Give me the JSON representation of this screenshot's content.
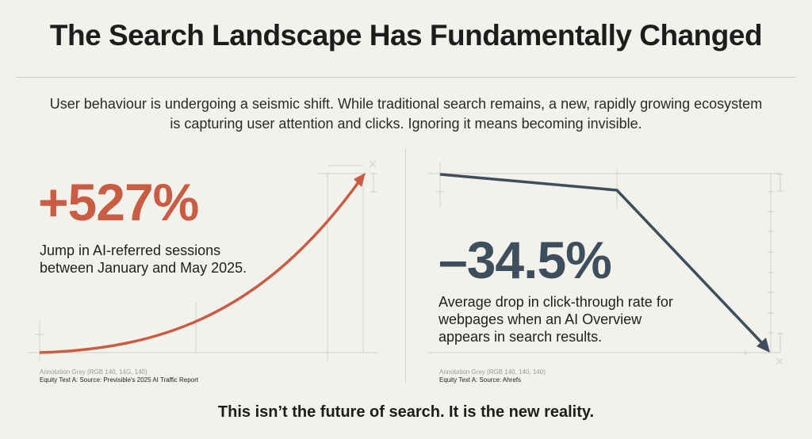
{
  "title": "The Search Landscape Has Fundamentally Changed",
  "intro": "User behaviour is undergoing a seismic shift. While traditional search remains, a new, rapidly growing ecosystem is capturing user attention and clicks. Ignoring it means becoming invisible.",
  "left_panel": {
    "stat": "+527%",
    "description": "Jump in AI-referred sessions between January and May 2025.",
    "annotation": "Annotation Grey (RGB 140, 14G, 140)",
    "source": "Equity Text A: Source: Previsible's 2025 AI Traffic Report",
    "color": "#c85d43",
    "trend": "up"
  },
  "right_panel": {
    "stat": "–34.5%",
    "description": "Average drop in click-through rate for webpages when an AI Overview appears in search results.",
    "annotation": "Annotation Grey (RGB 140, 140, 140)",
    "source": "Equity Text A: Source: Ahrefs",
    "color": "#3d4e5c",
    "trend": "down"
  },
  "footer": "This isn’t the future of search. It is the new reality."
}
